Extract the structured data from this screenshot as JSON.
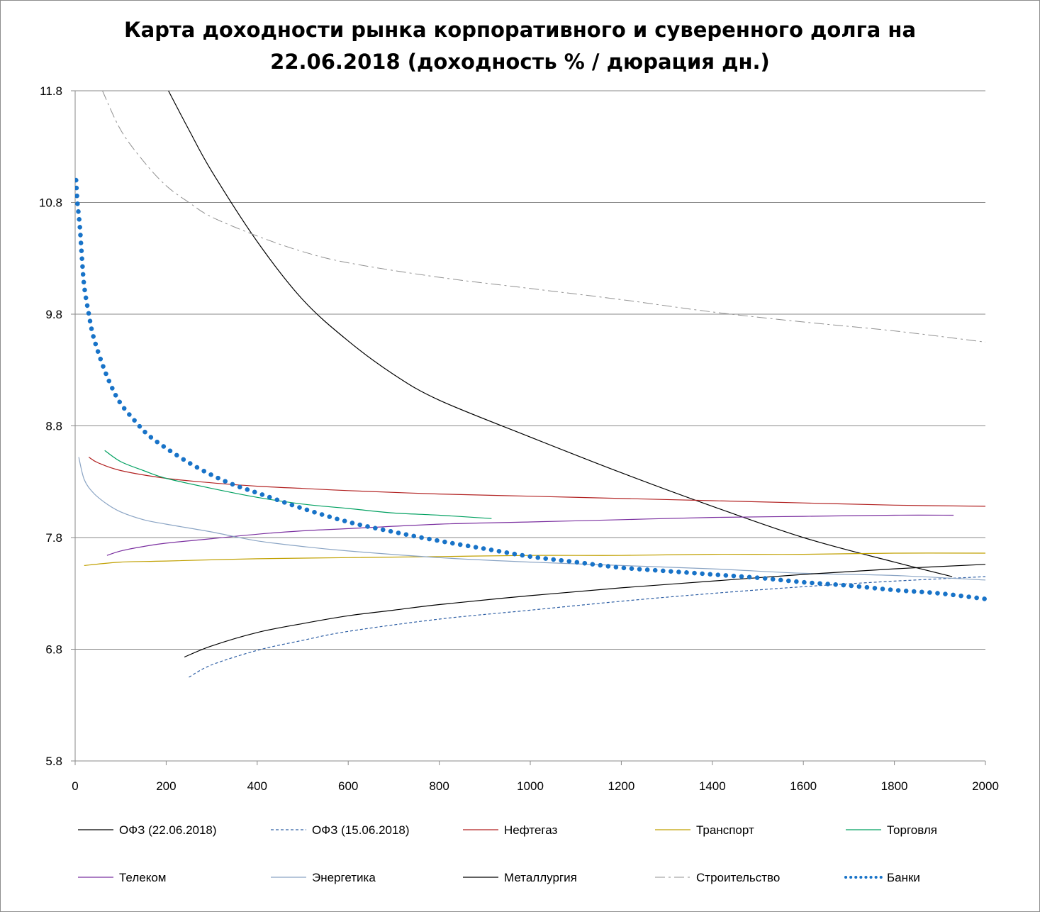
{
  "chart_data": {
    "type": "line",
    "title_line1": "Карта доходности рынка корпоративного и суверенного долга на",
    "title_line2": "22.06.2018 (доходность % / дюрация дн.)",
    "xlabel": "",
    "ylabel": "",
    "xlim": [
      0,
      2000
    ],
    "ylim": [
      5.8,
      11.8
    ],
    "x_ticks": [
      0,
      200,
      400,
      600,
      800,
      1000,
      1200,
      1400,
      1600,
      1800,
      2000
    ],
    "y_ticks": [
      "5.8",
      "6.8",
      "7.8",
      "8.8",
      "9.8",
      "10.8",
      "11.8"
    ],
    "grid": "horizontal",
    "legend_position": "bottom",
    "series": [
      {
        "name": "ОФЗ (22.06.2018)",
        "color": "#000000",
        "style": "solid",
        "width": 1.2,
        "points": [
          [
            205,
            11.8
          ],
          [
            250,
            11.45
          ],
          [
            300,
            11.08
          ],
          [
            400,
            10.45
          ],
          [
            500,
            9.93
          ],
          [
            600,
            9.56
          ],
          [
            700,
            9.26
          ],
          [
            800,
            9.03
          ],
          [
            1000,
            8.7
          ],
          [
            1200,
            8.38
          ],
          [
            1400,
            8.08
          ],
          [
            1600,
            7.8
          ],
          [
            1800,
            7.58
          ],
          [
            1927,
            7.45
          ]
        ]
      },
      {
        "name": "ОФЗ (15.06.2018)",
        "color": "#2e5fa5",
        "style": "dashed",
        "width": 1.2,
        "points": [
          [
            250,
            6.55
          ],
          [
            300,
            6.66
          ],
          [
            400,
            6.79
          ],
          [
            500,
            6.88
          ],
          [
            600,
            6.96
          ],
          [
            800,
            7.07
          ],
          [
            1000,
            7.15
          ],
          [
            1200,
            7.23
          ],
          [
            1400,
            7.3
          ],
          [
            1600,
            7.36
          ],
          [
            1800,
            7.41
          ],
          [
            2000,
            7.45
          ]
        ]
      },
      {
        "name": "Нефтегаз",
        "color": "#b22222",
        "style": "solid",
        "width": 1.2,
        "points": [
          [
            30,
            8.52
          ],
          [
            50,
            8.47
          ],
          [
            100,
            8.4
          ],
          [
            200,
            8.33
          ],
          [
            300,
            8.29
          ],
          [
            400,
            8.26
          ],
          [
            500,
            8.24
          ],
          [
            600,
            8.22
          ],
          [
            800,
            8.19
          ],
          [
            1000,
            8.17
          ],
          [
            1200,
            8.15
          ],
          [
            1400,
            8.13
          ],
          [
            1600,
            8.11
          ],
          [
            1800,
            8.09
          ],
          [
            2000,
            8.08
          ]
        ]
      },
      {
        "name": "Транспорт",
        "color": "#c0a000",
        "style": "solid",
        "width": 1.2,
        "points": [
          [
            20,
            7.55
          ],
          [
            100,
            7.58
          ],
          [
            200,
            7.59
          ],
          [
            400,
            7.61
          ],
          [
            600,
            7.62
          ],
          [
            800,
            7.63
          ],
          [
            1000,
            7.64
          ],
          [
            1200,
            7.64
          ],
          [
            1400,
            7.65
          ],
          [
            1600,
            7.65
          ],
          [
            1800,
            7.66
          ],
          [
            2000,
            7.66
          ]
        ]
      },
      {
        "name": "Торговля",
        "color": "#00a060",
        "style": "solid",
        "width": 1.2,
        "points": [
          [
            65,
            8.58
          ],
          [
            100,
            8.48
          ],
          [
            150,
            8.4
          ],
          [
            200,
            8.33
          ],
          [
            300,
            8.24
          ],
          [
            400,
            8.16
          ],
          [
            500,
            8.1
          ],
          [
            600,
            8.06
          ],
          [
            700,
            8.02
          ],
          [
            800,
            8.0
          ],
          [
            915,
            7.97
          ]
        ]
      },
      {
        "name": "Телеком",
        "color": "#7b30a0",
        "style": "solid",
        "width": 1.2,
        "points": [
          [
            70,
            7.64
          ],
          [
            100,
            7.68
          ],
          [
            150,
            7.72
          ],
          [
            200,
            7.75
          ],
          [
            300,
            7.79
          ],
          [
            400,
            7.83
          ],
          [
            500,
            7.86
          ],
          [
            600,
            7.88
          ],
          [
            800,
            7.92
          ],
          [
            1000,
            7.94
          ],
          [
            1200,
            7.96
          ],
          [
            1400,
            7.98
          ],
          [
            1600,
            7.99
          ],
          [
            1800,
            8.0
          ],
          [
            1930,
            8.0
          ]
        ]
      },
      {
        "name": "Энергетика",
        "color": "#8aa4c4",
        "style": "solid",
        "width": 1.2,
        "points": [
          [
            8,
            8.52
          ],
          [
            20,
            8.32
          ],
          [
            40,
            8.2
          ],
          [
            70,
            8.1
          ],
          [
            100,
            8.03
          ],
          [
            150,
            7.96
          ],
          [
            200,
            7.92
          ],
          [
            300,
            7.85
          ],
          [
            400,
            7.77
          ],
          [
            500,
            7.72
          ],
          [
            600,
            7.68
          ],
          [
            800,
            7.62
          ],
          [
            1000,
            7.58
          ],
          [
            1200,
            7.55
          ],
          [
            1400,
            7.52
          ],
          [
            1600,
            7.48
          ],
          [
            1800,
            7.46
          ],
          [
            2000,
            7.42
          ]
        ]
      },
      {
        "name": "Металлургия",
        "color": "#000000",
        "style": "solid",
        "width": 1.2,
        "points": [
          [
            240,
            6.73
          ],
          [
            300,
            6.83
          ],
          [
            400,
            6.95
          ],
          [
            500,
            7.03
          ],
          [
            600,
            7.1
          ],
          [
            700,
            7.15
          ],
          [
            800,
            7.2
          ],
          [
            1000,
            7.28
          ],
          [
            1200,
            7.35
          ],
          [
            1400,
            7.41
          ],
          [
            1600,
            7.47
          ],
          [
            1800,
            7.52
          ],
          [
            2000,
            7.56
          ]
        ]
      },
      {
        "name": "Строительство",
        "color": "#909090",
        "style": "dashdot",
        "width": 1.0,
        "points": [
          [
            60,
            11.8
          ],
          [
            100,
            11.45
          ],
          [
            150,
            11.17
          ],
          [
            200,
            10.95
          ],
          [
            250,
            10.8
          ],
          [
            300,
            10.67
          ],
          [
            400,
            10.5
          ],
          [
            500,
            10.36
          ],
          [
            600,
            10.26
          ],
          [
            800,
            10.13
          ],
          [
            1000,
            10.03
          ],
          [
            1200,
            9.93
          ],
          [
            1400,
            9.82
          ],
          [
            1600,
            9.73
          ],
          [
            1800,
            9.65
          ],
          [
            2000,
            9.55
          ]
        ]
      },
      {
        "name": "Банки",
        "color": "#1873c8",
        "style": "dotted",
        "width": 6.5,
        "points": [
          [
            2,
            11.0
          ],
          [
            5,
            10.8
          ],
          [
            10,
            10.6
          ],
          [
            15,
            10.3
          ],
          [
            20,
            10.05
          ],
          [
            30,
            9.8
          ],
          [
            40,
            9.6
          ],
          [
            60,
            9.35
          ],
          [
            80,
            9.15
          ],
          [
            100,
            9.0
          ],
          [
            130,
            8.85
          ],
          [
            160,
            8.72
          ],
          [
            200,
            8.6
          ],
          [
            250,
            8.47
          ],
          [
            300,
            8.36
          ],
          [
            350,
            8.27
          ],
          [
            400,
            8.2
          ],
          [
            500,
            8.06
          ],
          [
            600,
            7.94
          ],
          [
            700,
            7.85
          ],
          [
            800,
            7.77
          ],
          [
            900,
            7.7
          ],
          [
            1000,
            7.63
          ],
          [
            1100,
            7.58
          ],
          [
            1200,
            7.53
          ],
          [
            1300,
            7.5
          ],
          [
            1400,
            7.47
          ],
          [
            1500,
            7.44
          ],
          [
            1600,
            7.4
          ],
          [
            1700,
            7.37
          ],
          [
            1800,
            7.33
          ],
          [
            1900,
            7.3
          ],
          [
            2000,
            7.25
          ]
        ]
      }
    ]
  }
}
